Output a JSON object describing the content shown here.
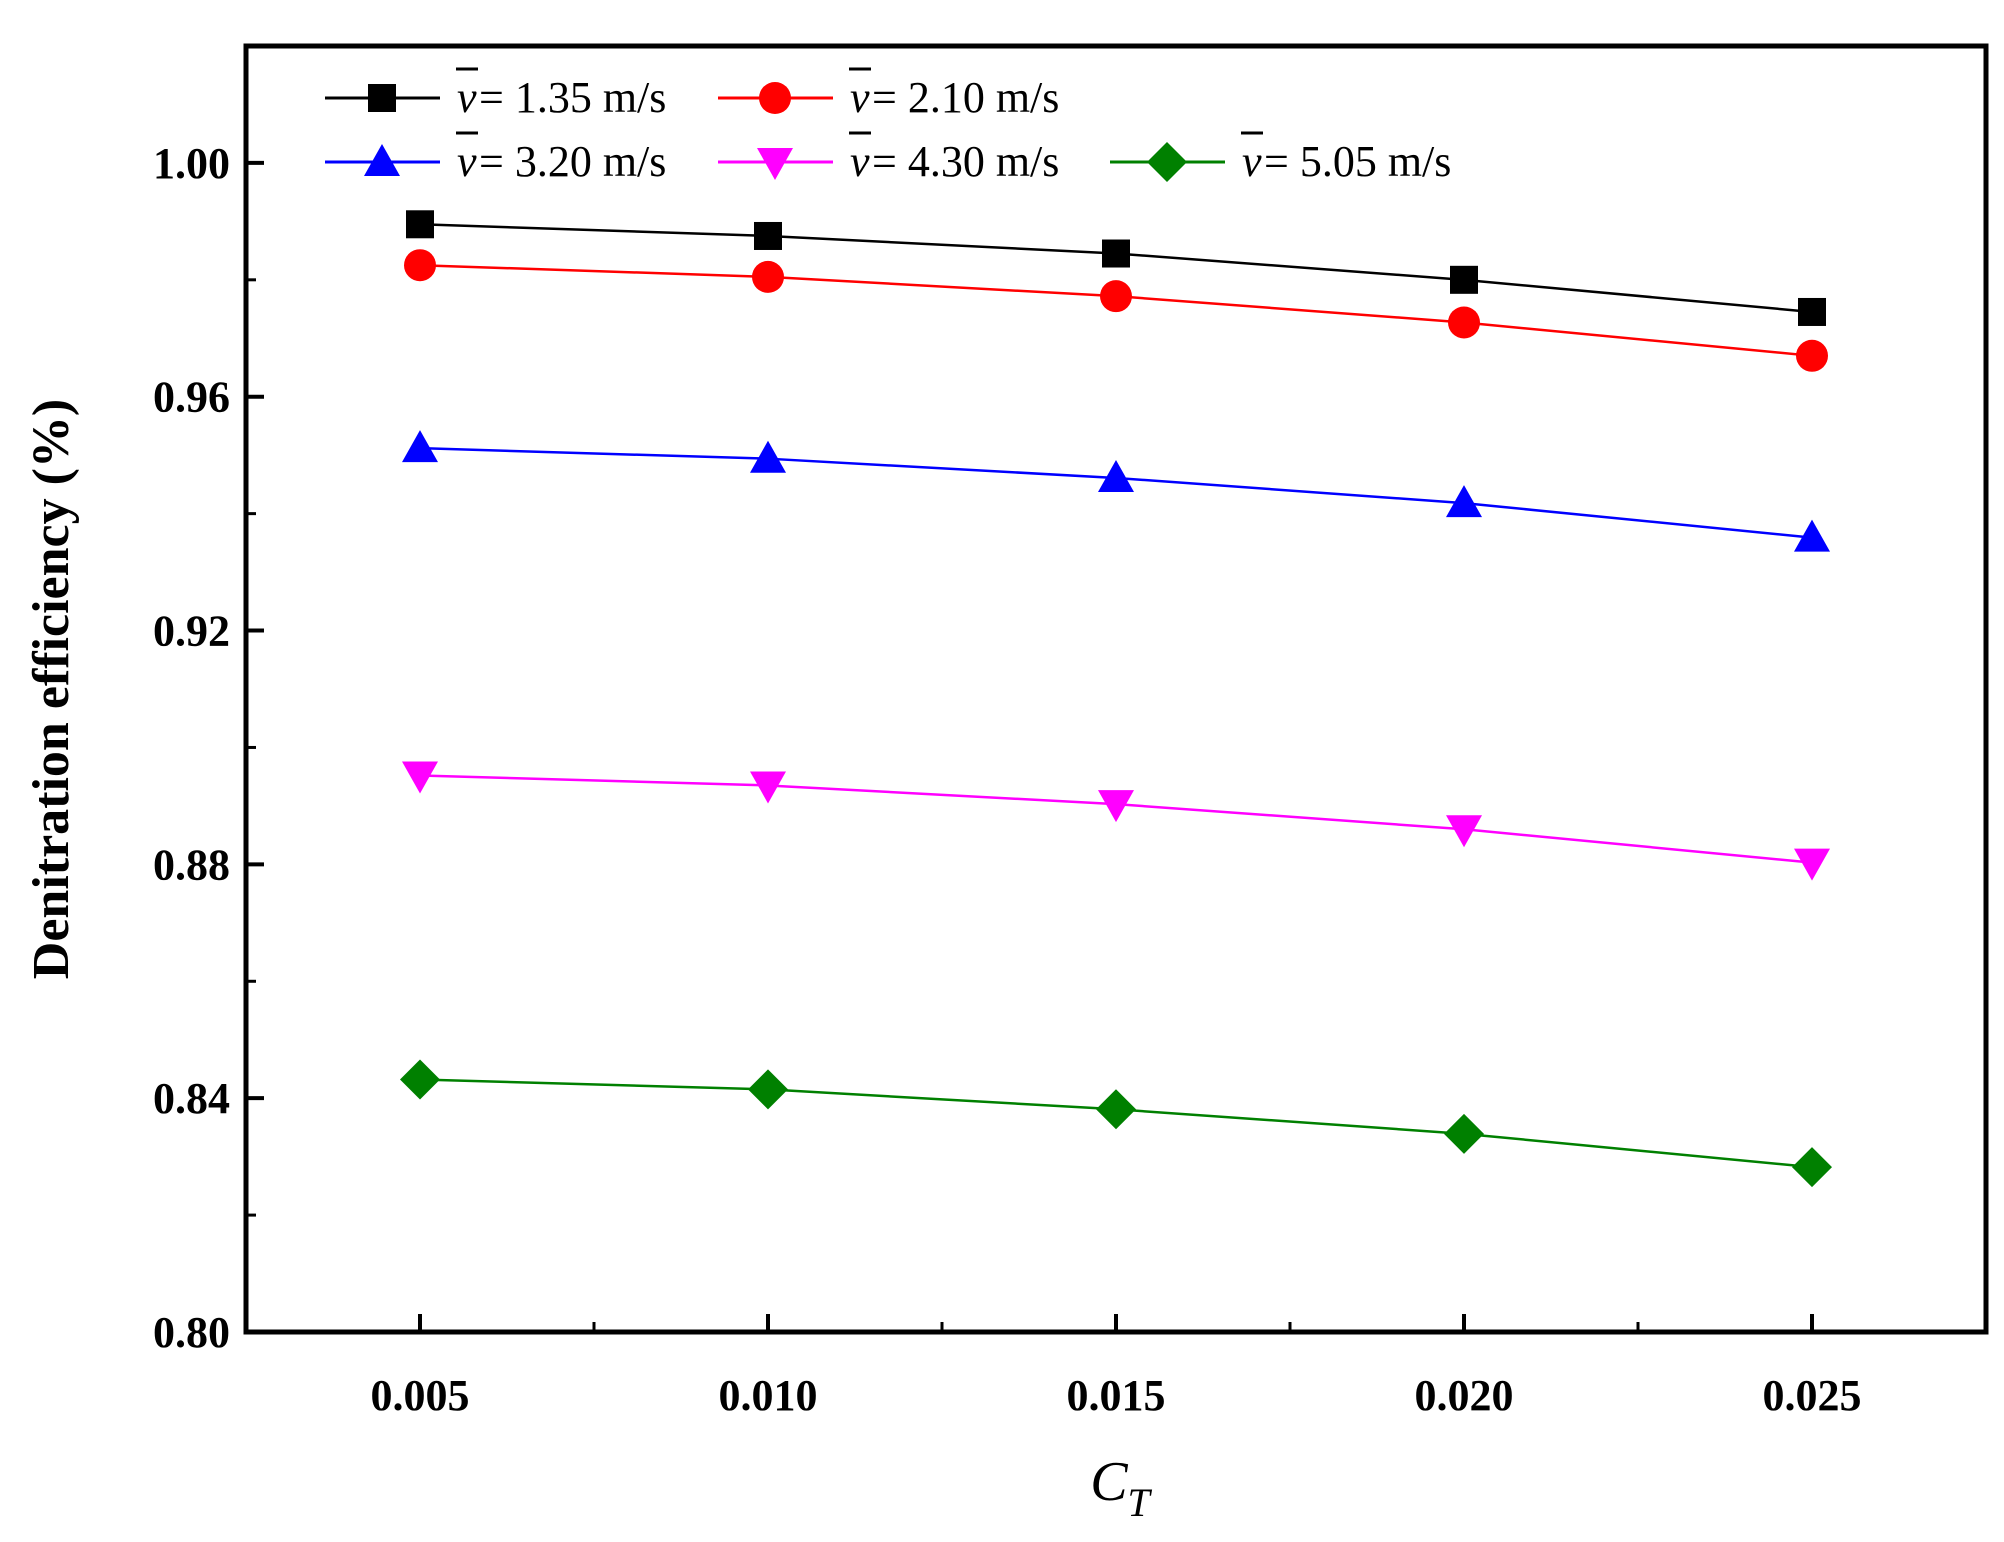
{
  "chart_data": {
    "type": "line",
    "title": "",
    "xlabel_main": "C",
    "xlabel_sub": "T",
    "ylabel": "Denitration efficiency (%)",
    "x": [
      0.005,
      0.01,
      0.015,
      0.02,
      0.025
    ],
    "x_tick_labels": [
      "0.005",
      "0.010",
      "0.015",
      "0.020",
      "0.025"
    ],
    "y_tick_labels": [
      "0.80",
      "0.84",
      "0.88",
      "0.92",
      "0.96",
      "1.00"
    ],
    "y_ticks": [
      0.8,
      0.84,
      0.88,
      0.92,
      0.96,
      1.0
    ],
    "xlim": [
      0.0025,
      0.0275
    ],
    "ylim": [
      0.8,
      1.02
    ],
    "legend_placement": "top-left",
    "legend_symbol": "v",
    "series": [
      {
        "name": "1.35 m/s",
        "label_suffix": " = 1.35 m/s",
        "color": "#000000",
        "marker": "square",
        "values": [
          0.9895,
          0.9875,
          0.9845,
          0.98,
          0.9745
        ]
      },
      {
        "name": "2.10 m/s",
        "label_suffix": " = 2.10 m/s",
        "color": "#ff0000",
        "marker": "circle",
        "values": [
          0.9825,
          0.9805,
          0.9772,
          0.9727,
          0.967
        ]
      },
      {
        "name": "3.20 m/s",
        "label_suffix": " = 3.20 m/s",
        "color": "#0000ff",
        "marker": "triangle-up",
        "values": [
          0.9512,
          0.9494,
          0.9461,
          0.9418,
          0.9359
        ]
      },
      {
        "name": "4.30 m/s",
        "label_suffix": " = 4.30 m/s",
        "color": "#ff00ff",
        "marker": "triangle-down",
        "values": [
          0.8952,
          0.8935,
          0.8903,
          0.886,
          0.8803
        ]
      },
      {
        "name": "5.05 m/s",
        "label_suffix": " = 5.05 m/s",
        "color": "#008000",
        "marker": "diamond",
        "values": [
          0.8432,
          0.8415,
          0.8381,
          0.8339,
          0.8282
        ]
      }
    ]
  }
}
